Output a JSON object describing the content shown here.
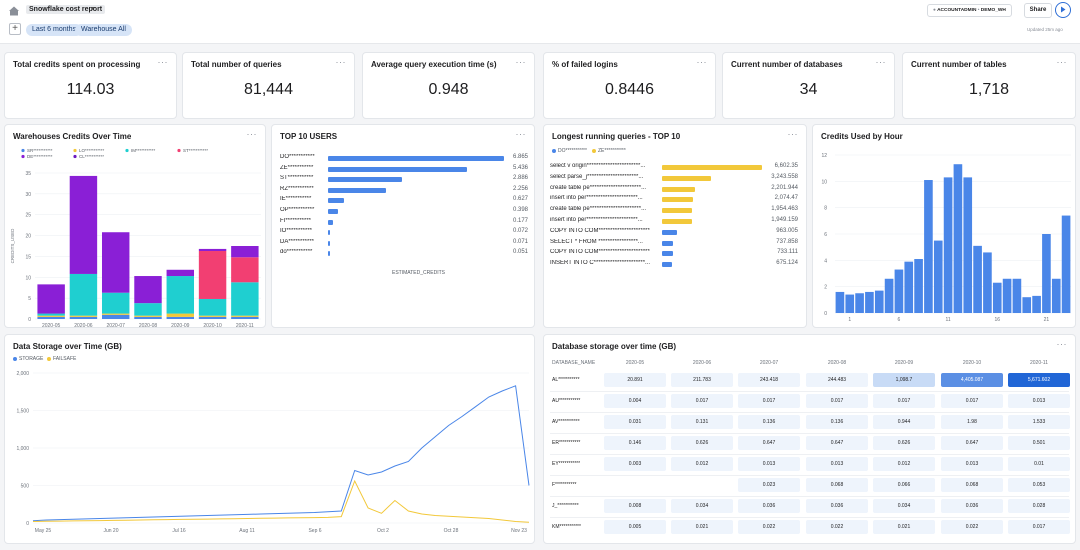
{
  "header": {
    "title": "Snowflake cost report",
    "filters": [
      "Last 6 months",
      "Warehouse All"
    ],
    "role": "ACCOUNTADMIN",
    "warehouse": "DEMO_WH",
    "share_label": "Share",
    "updated": "Updated 25m ago",
    "add_label": "+"
  },
  "kpis": [
    {
      "title": "Total credits spent on processing",
      "value": "114.03"
    },
    {
      "title": "Total number of queries",
      "value": "81,444"
    },
    {
      "title": "Average query execution time (s)",
      "value": "0.948"
    },
    {
      "title": "% of failed logins",
      "value": "0.8446"
    },
    {
      "title": "Current number of databases",
      "value": "34"
    },
    {
      "title": "Current number of tables",
      "value": "1,718"
    }
  ],
  "kebab": "···",
  "chart_data": [
    {
      "type": "bar",
      "stacked": true,
      "title": "Warehouses Credits Over Time",
      "xlabel": "MONTH",
      "ylabel": "CREDITS_USED",
      "ylim": [
        0,
        35
      ],
      "yticks": [
        "0",
        "5",
        "10",
        "15",
        "20",
        "25",
        "30",
        "35"
      ],
      "categories": [
        "2020-05",
        "2020-06",
        "2020-07",
        "2020-08",
        "2020-09",
        "2020-10",
        "2020-11"
      ],
      "series": [
        {
          "name": "SR***********",
          "color": "#4a86e8",
          "values": [
            0.5,
            0.5,
            1,
            0.5,
            0.5,
            0.5,
            0.5
          ]
        },
        {
          "name": "LO***********",
          "color": "#f2c83a",
          "values": [
            0.3,
            0.3,
            0.3,
            0.3,
            0.8,
            0.3,
            0.3
          ]
        },
        {
          "name": "IM***********",
          "color": "#1fcfd0",
          "values": [
            0.5,
            10,
            5,
            3,
            9,
            4,
            8
          ]
        },
        {
          "name": "ST***********",
          "color": "#f23f72",
          "values": [
            0,
            0,
            0,
            0,
            0,
            11.5,
            6
          ]
        },
        {
          "name": "DE***********",
          "color": "#8a1fd6",
          "values": [
            7,
            23.5,
            14.5,
            6.5,
            1.5,
            0.5,
            2.7
          ]
        },
        {
          "name": "CL***********",
          "color": "#6b1bbf",
          "values": [
            0,
            0,
            0,
            0,
            0,
            0,
            0
          ]
        }
      ]
    },
    {
      "type": "bar",
      "orientation": "horizontal",
      "title": "TOP 10 USERS",
      "xlabel": "ESTIMATED_CREDITS",
      "categories": [
        "DO***********",
        "ZE***********",
        "ST***********",
        "RZ***********",
        "IE***********",
        "OP***********",
        "FI***********",
        "IO***********",
        "DA***********",
        "do***********"
      ],
      "values": [
        6.865,
        5.436,
        2.886,
        2.256,
        0.627,
        0.398,
        0.177,
        0.072,
        0.071,
        0.051
      ],
      "labels": [
        "6.865",
        "5.436",
        "2.886",
        "2.256",
        "0.627",
        "0.398",
        "0.177",
        "0.072",
        "0.071",
        "0.051"
      ]
    },
    {
      "type": "bar",
      "orientation": "horizontal",
      "title": "Longest running queries - TOP 10",
      "legend": [
        {
          "name": "DO***********",
          "color": "#4a86e8"
        },
        {
          "name": "ZE***********",
          "color": "#f2c83a"
        }
      ],
      "categories": [
        "select v origin***********************...",
        "select  parse_j**********************...",
        "create table pe**********************...",
        "insert into per**********************...",
        "create table pe**********************...",
        "insert into per**********************...",
        "COPY INTO COM**********************",
        "SELECT * FROM  *****************...",
        "COPY INTO COM**********************",
        "INSERT INTO C**********************..."
      ],
      "values": [
        6602.35,
        3243.558,
        2201.944,
        2074.47,
        1954.463,
        1949.159,
        963.005,
        737.858,
        733.111,
        675.124
      ],
      "labels": [
        "6,602.35",
        "3,243.558",
        "2,201.944",
        "2,074.47",
        "1,954.463",
        "1,949.159",
        "963.005",
        "737.858",
        "733.111",
        "675.124"
      ],
      "colors": [
        "#f2c83a",
        "#f2c83a",
        "#f2c83a",
        "#f2c83a",
        "#f2c83a",
        "#f2c83a",
        "#4a86e8",
        "#4a86e8",
        "#4a86e8",
        "#4a86e8"
      ]
    },
    {
      "type": "bar",
      "title": "Credits Used by Hour",
      "ylim": [
        0,
        12
      ],
      "yticks": [
        "0",
        "2",
        "4",
        "6",
        "8",
        "10",
        "12"
      ],
      "xticks": [
        "1",
        "6",
        "11",
        "16",
        "21"
      ],
      "categories": [
        "0",
        "1",
        "2",
        "3",
        "4",
        "5",
        "6",
        "7",
        "8",
        "9",
        "10",
        "11",
        "12",
        "13",
        "14",
        "15",
        "16",
        "17",
        "18",
        "19",
        "20",
        "21",
        "22",
        "23"
      ],
      "values": [
        1.6,
        1.4,
        1.5,
        1.6,
        1.7,
        2.6,
        3.3,
        3.9,
        4.1,
        10.1,
        5.5,
        10.3,
        11.3,
        10.3,
        5.1,
        4.6,
        2.3,
        2.6,
        2.6,
        1.2,
        1.3,
        6.0,
        2.6,
        7.4
      ]
    },
    {
      "type": "line",
      "title": "Data Storage over Time (GB)",
      "legend": [
        {
          "name": "STORAGE",
          "color": "#4a86e8"
        },
        {
          "name": "FAILSAFE",
          "color": "#f2c83a"
        }
      ],
      "ylim": [
        0,
        2000
      ],
      "yticks": [
        "0",
        "500",
        "1,000",
        "1,500",
        "2,000"
      ],
      "xticks": [
        "May 25",
        "Jun 20",
        "Jul 16",
        "Aug 11",
        "Sep 6",
        "Oct 2",
        "Oct 28",
        "Nov 23"
      ],
      "x": [
        0,
        5,
        10,
        15,
        20,
        25,
        30,
        35,
        40,
        45,
        50,
        55,
        60,
        65,
        70,
        75,
        80,
        85,
        90,
        95,
        100,
        105,
        110,
        115,
        120,
        125,
        130,
        135,
        140,
        145,
        150,
        155,
        160,
        165,
        170,
        175,
        180,
        185
      ],
      "series": [
        {
          "name": "STORAGE",
          "color": "#4a86e8",
          "values": [
            30,
            40,
            45,
            50,
            55,
            60,
            65,
            70,
            75,
            80,
            85,
            90,
            95,
            100,
            105,
            110,
            115,
            120,
            125,
            130,
            135,
            140,
            150,
            160,
            700,
            640,
            680,
            760,
            820,
            1000,
            1150,
            1300,
            1420,
            1550,
            1680,
            1760,
            1830,
            500
          ]
        },
        {
          "name": "FAILSAFE",
          "color": "#f2c83a",
          "values": [
            20,
            22,
            25,
            28,
            30,
            32,
            35,
            38,
            40,
            42,
            45,
            48,
            50,
            52,
            55,
            58,
            60,
            62,
            65,
            68,
            70,
            72,
            75,
            85,
            560,
            200,
            130,
            300,
            160,
            120,
            100,
            90,
            80,
            70,
            60,
            40,
            20,
            10
          ]
        }
      ]
    },
    {
      "type": "table",
      "title": "Database storage over time (GB)",
      "columns": [
        "DATABASE_NAME",
        "2020-05",
        "2020-06",
        "2020-07",
        "2020-08",
        "2020-09",
        "2020-10",
        "2020-11"
      ],
      "rows": [
        [
          "AL***********",
          "20.891",
          "211.783",
          "243.418",
          "244.483",
          "1,098.7",
          "4,405.087",
          "5,671.602"
        ],
        [
          "AU***********",
          "0.004",
          "0.017",
          "0.017",
          "0.017",
          "0.017",
          "0.017",
          "0.013"
        ],
        [
          "AV***********",
          "0.031",
          "0.131",
          "0.136",
          "0.136",
          "0.944",
          "1.98",
          "1.533"
        ],
        [
          "ER***********",
          "0.146",
          "0.626",
          "0.647",
          "0.647",
          "0.626",
          "0.647",
          "0.501"
        ],
        [
          "EY***********",
          "0.003",
          "0.012",
          "0.013",
          "0.013",
          "0.012",
          "0.013",
          "0.01"
        ],
        [
          "F***********",
          "",
          "",
          "0.023",
          "0.068",
          "0.066",
          "0.068",
          "0.053"
        ],
        [
          "J_***********",
          "0.008",
          "0.034",
          "0.036",
          "0.036",
          "0.034",
          "0.036",
          "0.028"
        ],
        [
          "KM***********",
          "0.005",
          "0.021",
          "0.022",
          "0.022",
          "0.021",
          "0.022",
          "0.017"
        ]
      ]
    }
  ]
}
